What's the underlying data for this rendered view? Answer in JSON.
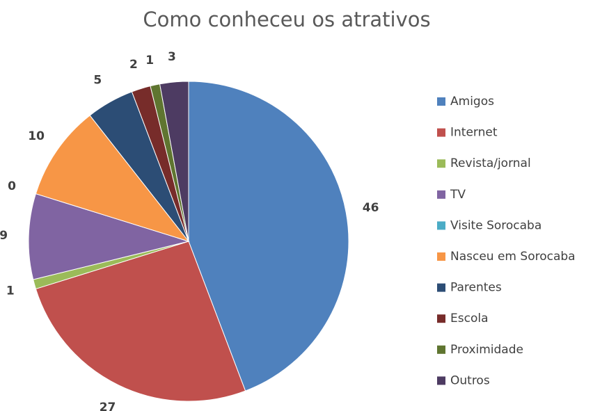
{
  "chart_data": {
    "type": "pie",
    "title": "Como conheceu os atrativos",
    "categories": [
      "Amigos",
      "Internet",
      "Revista/jornal",
      "TV",
      "Visite Sorocaba",
      "Nasceu em Sorocaba",
      "Parentes",
      "Escola",
      "Proximidade",
      "Outros"
    ],
    "values": [
      46,
      27,
      1,
      9,
      0,
      10,
      5,
      2,
      1,
      3
    ],
    "colors": [
      "#4f81bd",
      "#c0504d",
      "#9bbb59",
      "#8064a2",
      "#4bacc6",
      "#f79646",
      "#2c4d75",
      "#772c2a",
      "#5f7530",
      "#4d3b62"
    ],
    "legend": "right"
  }
}
